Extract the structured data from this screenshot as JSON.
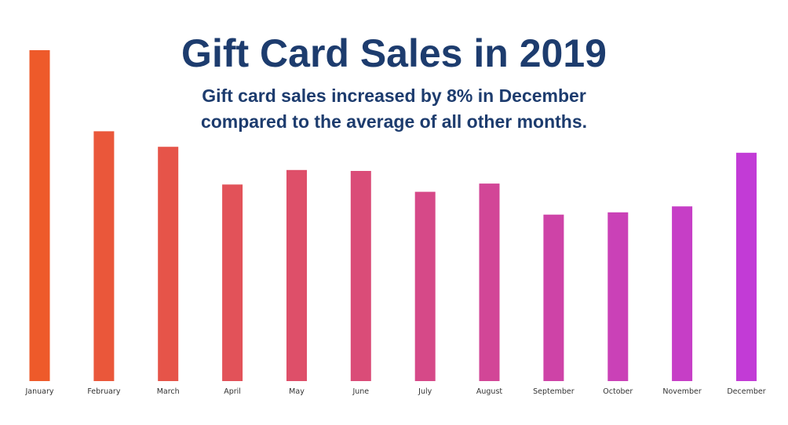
{
  "chart_data": {
    "type": "bar",
    "title": "Gift Card Sales in 2019",
    "subtitle_lines": [
      "Gift card sales increased by 8% in December",
      "compared to the average of all other months."
    ],
    "xlabel": "",
    "ylabel": "",
    "categories": [
      "January",
      "February",
      "March",
      "April",
      "May",
      "June",
      "July",
      "August",
      "September",
      "October",
      "November",
      "December"
    ],
    "values": [
      100,
      75.5,
      70.8,
      59.4,
      63.8,
      63.5,
      57.2,
      59.7,
      50.3,
      51.0,
      52.8,
      69.0
    ],
    "ylim": [
      0,
      100
    ],
    "grid": false,
    "legend": "none",
    "colors": {
      "title": "#1d3c6e",
      "labels": "#333333",
      "bar_start": "#ee5a2a",
      "bar_end": "#c23bd6"
    }
  }
}
